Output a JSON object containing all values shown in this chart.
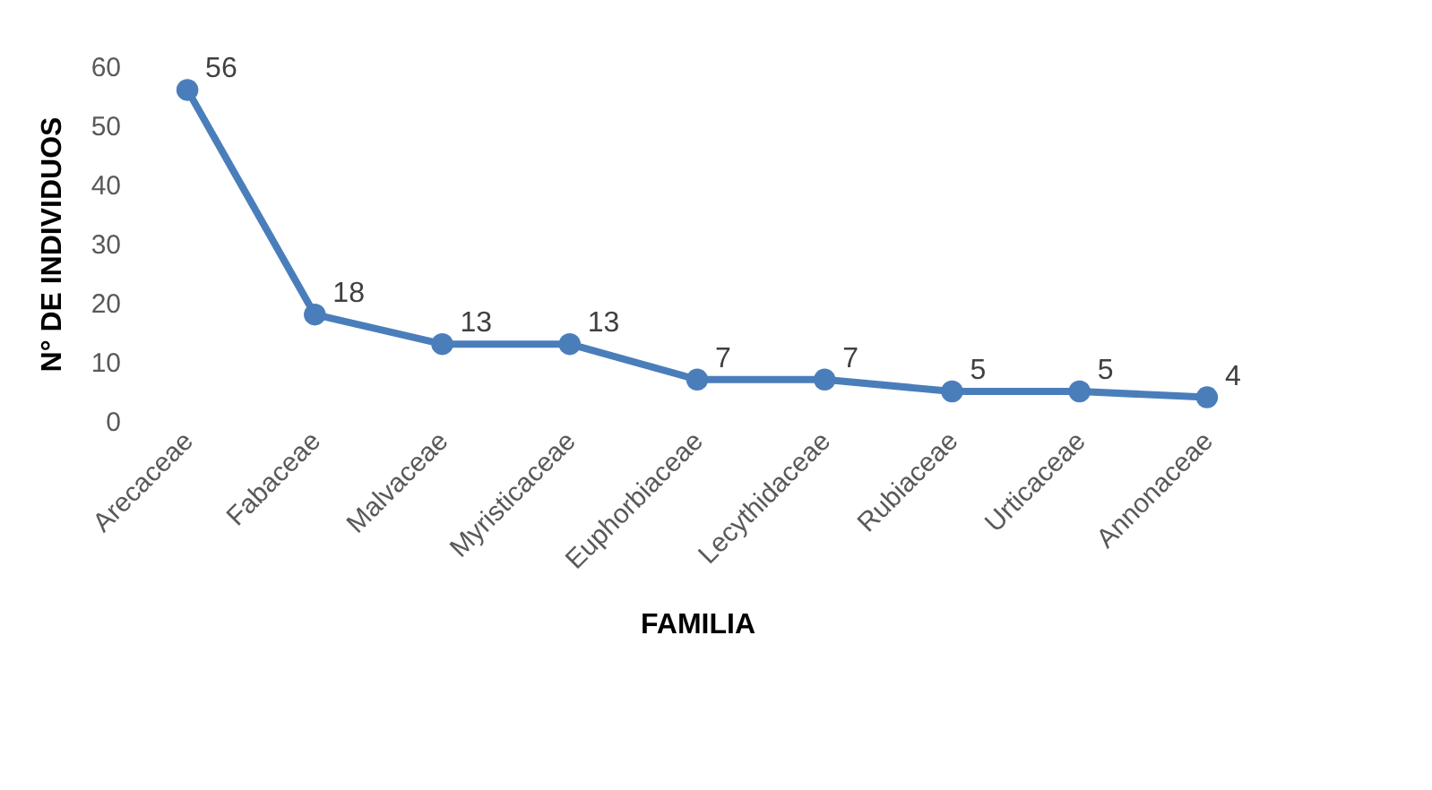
{
  "chart_data": {
    "type": "line",
    "xlabel": "FAMILIA",
    "ylabel": "N° DE INDIVIDUOS",
    "categories": [
      "Arecaceae",
      "Fabaceae",
      "Malvaceae",
      "Myristicaceae",
      "Euphorbiaceae",
      "Lecythidaceae",
      "Rubiaceae",
      "Urticaceae",
      "Annonaceae"
    ],
    "series": [
      {
        "color": "#4a7ebb",
        "values": [
          56,
          18,
          13,
          13,
          7,
          7,
          5,
          5,
          4
        ]
      }
    ],
    "ylim": [
      0,
      60
    ],
    "yticks": [
      0,
      10,
      20,
      30,
      40,
      50,
      60
    ],
    "grid": false,
    "legend": false,
    "marker": "circle",
    "line_style": "solid",
    "data_labels": true
  }
}
